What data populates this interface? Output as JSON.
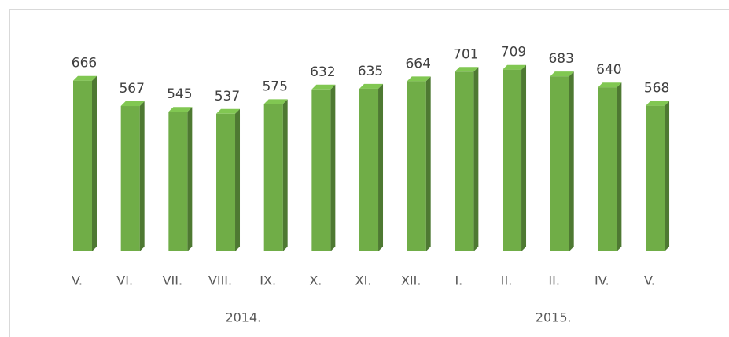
{
  "chart_data": {
    "type": "bar3d",
    "categories": [
      "V.",
      "VI.",
      "VII.",
      "VIII.",
      "IX.",
      "X.",
      "XI.",
      "XII.",
      "I.",
      "II.",
      "II.",
      "IV.",
      "V."
    ],
    "values": [
      666,
      567,
      545,
      537,
      575,
      632,
      635,
      664,
      701,
      709,
      683,
      640,
      568
    ],
    "x_groups": [
      {
        "label": "2014.",
        "count": 8
      },
      {
        "label": "2015.",
        "count": 5
      }
    ],
    "color": "#70ad47",
    "ylim": [
      0,
      800
    ]
  }
}
